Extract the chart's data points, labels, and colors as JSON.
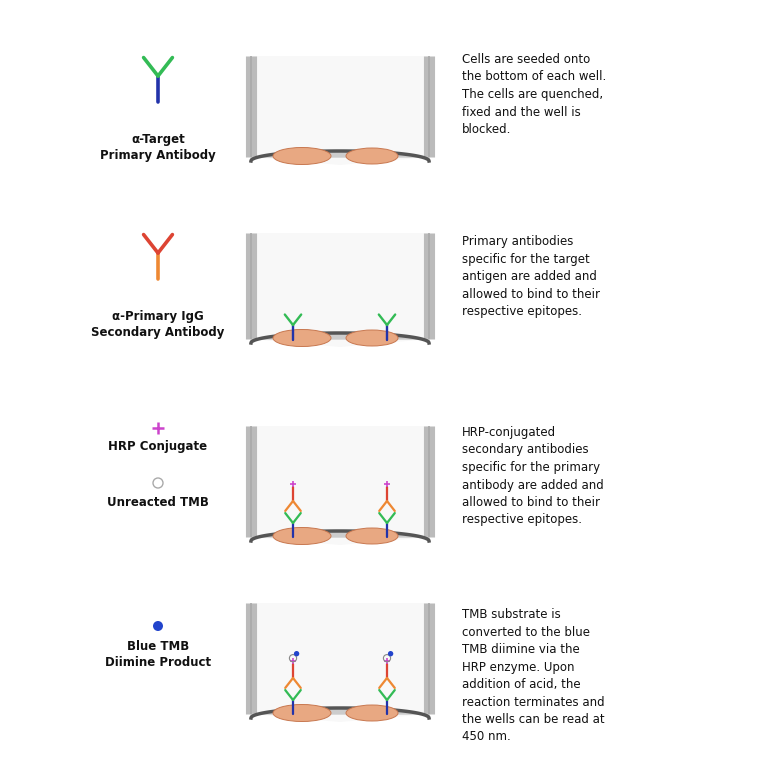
{
  "background_color": "#ffffff",
  "well_fill": "#f8f8f8",
  "well_border": "#aaaaaa",
  "well_bottom_color": "#555555",
  "cell_color": "#e8a882",
  "cell_outline": "#c87850",
  "primary_ab_top": "#33bb55",
  "primary_ab_arms": "#2233aa",
  "secondary_ab_top": "#dd4433",
  "secondary_ab_arms": "#ee8833",
  "hrp_color": "#cc44cc",
  "tmb_color": "#999999",
  "blue_tmb_color": "#2244cc",
  "text_color": "#111111",
  "label_fontsize": 8.5,
  "desc_fontsize": 8.5,
  "rows": [
    {
      "description": "Cells are seeded onto\nthe bottom of each well.\nThe cells are quenched,\nfixed and the well is\nblocked."
    },
    {
      "description": "Primary antibodies\nspecific for the target\nantigen are added and\nallowed to bind to their\nrespective epitopes."
    },
    {
      "description": "HRP-conjugated\nsecondary antibodies\nspecific for the primary\nantibody are added and\nallowed to bind to their\nrespective epitopes."
    },
    {
      "description": "TMB substrate is\nconverted to the blue\nTMB diimine via the\nHRP enzyme. Upon\naddition of acid, the\nreaction terminates and\nthe wells can be read at\n450 nm."
    }
  ]
}
